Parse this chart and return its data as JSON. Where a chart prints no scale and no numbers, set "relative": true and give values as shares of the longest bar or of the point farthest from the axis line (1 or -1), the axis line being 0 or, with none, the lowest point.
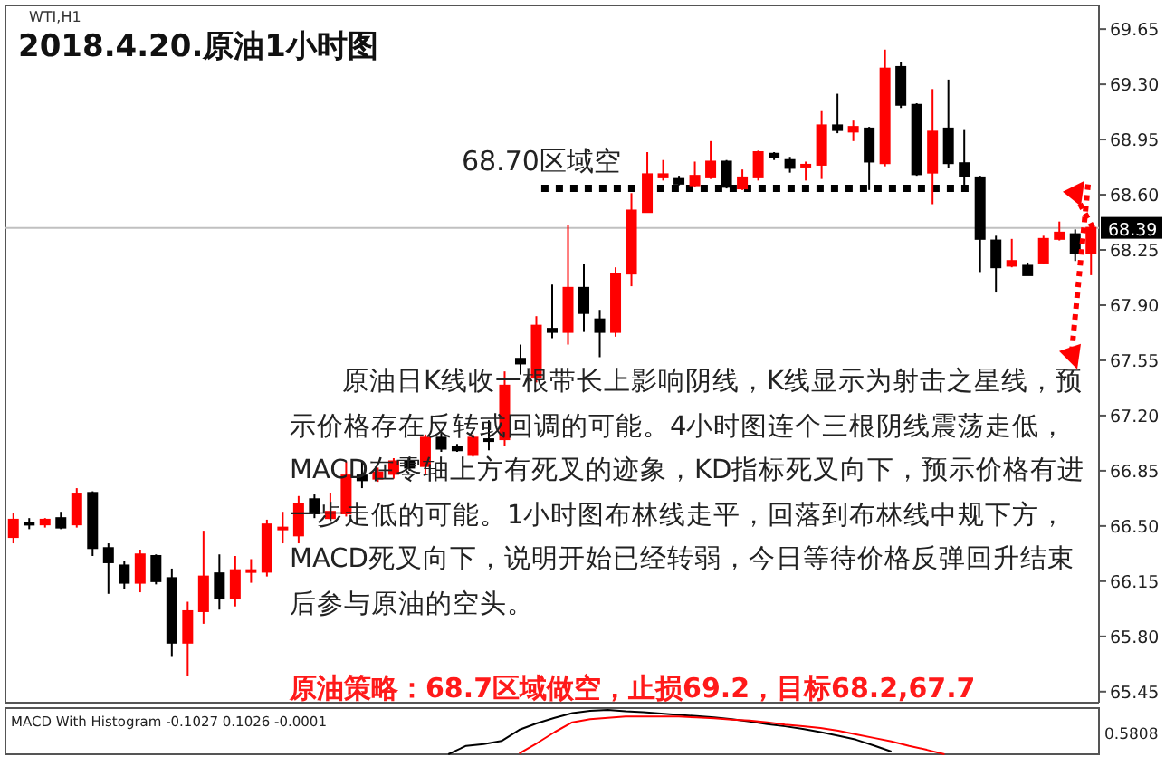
{
  "chart_data": [
    {
      "type": "candlestick",
      "title": "2018.4.20.原油1小时图",
      "subtitle": "WTI,H1",
      "categories": [
        null,
        null,
        null,
        null,
        null,
        null,
        null,
        null,
        null,
        null,
        null,
        null,
        null,
        null,
        null,
        null,
        null,
        null,
        null,
        null,
        null,
        null,
        null,
        null,
        null,
        null,
        null,
        null,
        null,
        null,
        null,
        null,
        null,
        null,
        null,
        null,
        null,
        null,
        null,
        null,
        null,
        null,
        null,
        null,
        null,
        null,
        null,
        null,
        null,
        null,
        null,
        null,
        null,
        null,
        null,
        null,
        null,
        null,
        null,
        null,
        null,
        null,
        null,
        null,
        null,
        null,
        null,
        null,
        null
      ],
      "ohlc": [
        [
          66.43,
          66.58,
          66.39,
          66.54
        ],
        [
          66.52,
          66.55,
          66.48,
          66.51
        ],
        [
          66.51,
          66.55,
          66.49,
          66.54
        ],
        [
          66.55,
          66.59,
          66.48,
          66.49
        ],
        [
          66.51,
          66.74,
          66.49,
          66.7
        ],
        [
          66.71,
          66.72,
          66.31,
          66.36
        ],
        [
          66.36,
          66.39,
          66.07,
          66.27
        ],
        [
          66.25,
          66.28,
          66.1,
          66.14
        ],
        [
          66.14,
          66.35,
          66.08,
          66.32
        ],
        [
          66.31,
          66.32,
          66.13,
          66.15
        ],
        [
          66.17,
          66.23,
          65.67,
          65.76
        ],
        [
          65.76,
          66.02,
          65.55,
          65.96
        ],
        [
          65.96,
          66.47,
          65.88,
          66.18
        ],
        [
          66.2,
          66.32,
          65.97,
          66.04
        ],
        [
          66.04,
          66.31,
          65.99,
          66.22
        ],
        [
          66.21,
          66.29,
          66.14,
          66.22
        ],
        [
          66.21,
          66.54,
          66.18,
          66.51
        ],
        [
          66.48,
          66.59,
          66.39,
          66.49
        ],
        [
          66.44,
          66.69,
          66.39,
          66.64
        ],
        [
          66.67,
          66.7,
          66.55,
          66.58
        ],
        [
          66.55,
          66.71,
          66.54,
          66.59
        ],
        [
          66.58,
          66.91,
          66.56,
          66.82
        ],
        [
          66.82,
          66.91,
          66.74,
          66.79
        ],
        [
          66.8,
          66.87,
          66.78,
          66.84
        ],
        [
          66.83,
          66.93,
          66.8,
          66.91
        ],
        [
          66.91,
          66.94,
          66.85,
          66.87
        ],
        [
          66.88,
          67.08,
          66.83,
          67.06
        ],
        [
          67.06,
          67.09,
          66.97,
          66.99
        ],
        [
          67.0,
          67.02,
          66.97,
          66.98
        ],
        [
          66.95,
          67.08,
          66.94,
          67.06
        ],
        [
          67.05,
          67.17,
          66.98,
          67.04
        ],
        [
          67.05,
          67.48,
          67.01,
          67.39
        ],
        [
          67.56,
          67.65,
          67.46,
          67.53
        ],
        [
          67.44,
          67.83,
          67.41,
          67.77
        ],
        [
          67.75,
          68.03,
          67.69,
          67.73
        ],
        [
          67.73,
          68.41,
          67.65,
          68.01
        ],
        [
          68.01,
          68.16,
          67.73,
          67.85
        ],
        [
          67.81,
          67.87,
          67.57,
          67.73
        ],
        [
          67.73,
          68.14,
          67.7,
          68.1
        ],
        [
          68.1,
          68.61,
          68.02,
          68.5
        ],
        [
          68.49,
          68.87,
          68.49,
          68.73
        ],
        [
          68.71,
          68.82,
          68.69,
          68.73
        ],
        [
          68.7,
          68.72,
          68.66,
          68.67
        ],
        [
          68.66,
          68.81,
          68.65,
          68.72
        ],
        [
          68.71,
          68.94,
          68.7,
          68.81
        ],
        [
          68.81,
          68.82,
          68.64,
          68.65
        ],
        [
          68.64,
          68.76,
          68.63,
          68.71
        ],
        [
          68.71,
          68.88,
          68.69,
          68.87
        ],
        [
          68.86,
          68.87,
          68.82,
          68.84
        ],
        [
          68.82,
          68.84,
          68.74,
          68.77
        ],
        [
          68.78,
          68.81,
          68.69,
          68.79
        ],
        [
          68.79,
          69.13,
          68.7,
          69.04
        ],
        [
          69.04,
          69.24,
          68.99,
          69.01
        ],
        [
          69.0,
          69.07,
          68.94,
          69.03
        ],
        [
          69.02,
          69.03,
          68.63,
          68.81
        ],
        [
          68.8,
          69.52,
          68.78,
          69.4
        ],
        [
          69.41,
          69.44,
          69.15,
          69.17
        ],
        [
          69.17,
          69.18,
          68.72,
          68.73
        ],
        [
          68.74,
          69.27,
          68.54,
          69.0
        ],
        [
          69.02,
          69.33,
          68.77,
          68.8
        ],
        [
          68.8,
          69.01,
          68.65,
          68.72
        ],
        [
          68.71,
          68.72,
          68.11,
          68.32
        ],
        [
          68.31,
          68.34,
          67.98,
          68.14
        ],
        [
          68.15,
          68.32,
          68.14,
          68.18
        ],
        [
          68.15,
          68.17,
          68.09,
          68.09
        ],
        [
          68.17,
          68.34,
          68.16,
          68.32
        ],
        [
          68.32,
          68.43,
          68.31,
          68.36
        ],
        [
          68.35,
          68.38,
          68.18,
          68.23
        ],
        [
          68.23,
          68.41,
          68.09,
          68.39
        ]
      ],
      "colors": [
        "#ff0000",
        "#000000",
        "#ff0000",
        "#000000",
        "#ff0000",
        "#000000",
        "#000000",
        "#000000",
        "#ff0000",
        "#000000",
        "#000000",
        "#ff0000",
        "#ff0000",
        "#000000",
        "#ff0000",
        "#ff0000",
        "#ff0000",
        "#ff0000",
        "#ff0000",
        "#000000",
        "#ff0000",
        "#ff0000",
        "#000000",
        "#ff0000",
        "#ff0000",
        "#000000",
        "#ff0000",
        "#000000",
        "#000000",
        "#ff0000",
        "#000000",
        "#ff0000",
        "#000000",
        "#ff0000",
        "#000000",
        "#ff0000",
        "#000000",
        "#000000",
        "#ff0000",
        "#ff0000",
        "#ff0000",
        "#ff0000",
        "#000000",
        "#ff0000",
        "#ff0000",
        "#000000",
        "#ff0000",
        "#ff0000",
        "#000000",
        "#000000",
        "#ff0000",
        "#ff0000",
        "#000000",
        "#ff0000",
        "#000000",
        "#ff0000",
        "#000000",
        "#000000",
        "#ff0000",
        "#000000",
        "#000000",
        "#000000",
        "#000000",
        "#ff0000",
        "#000000",
        "#ff0000",
        "#ff0000",
        "#000000",
        "#ff0000"
      ],
      "ylim": [
        65.38,
        69.8
      ],
      "yticks": [
        69.65,
        {
          "value": 69.3,
          "label": "69.30"
        },
        68.95,
        {
          "value": 68.6,
          "label": "68.60"
        },
        68.25,
        {
          "value": 67.9,
          "label": "67.90"
        },
        67.55,
        {
          "value": 67.2,
          "label": "67.20"
        },
        66.85,
        {
          "value": 66.5,
          "label": "66.50"
        },
        66.15,
        {
          "value": 65.8,
          "label": "65.80"
        },
        65.45
      ],
      "tick_labels": "y",
      "ref_lines": [
        {
          "axis": "y",
          "value": 68.39,
          "label": "68.39",
          "color": "#c0c0c0",
          "line_style": "solid"
        },
        {
          "axis": "y",
          "value": 68.64,
          "label": "68.70区域空",
          "color": "#000000",
          "line_style": "dotted"
        }
      ],
      "annotations": [
        "原油日K线收一根带长上影响阴线，K线显示为射击之星线，预示价格存在反转或回调的可能。4小时图连个三根阴线震荡走低，MACD在零轴上方有死叉的迹象，KD指标死叉向下，预示价格有进一步走低的可能。1小时图布林线走平，回落到布林线中规下方，MACD死叉向下，说明开始已经转弱，今日等待价格反弹回升结束后参与原油的空头。",
        "原油策略：68.7区域做空，止损69.2，目标68.2,67.7"
      ]
    },
    {
      "type": "line",
      "relative": true,
      "tick_labels": false,
      "categories": [
        null,
        null,
        null,
        null,
        null,
        null,
        null,
        null,
        null,
        null,
        null,
        null,
        null,
        null,
        null,
        null,
        null,
        null,
        null,
        null,
        null,
        null,
        null,
        null,
        null,
        null,
        null,
        null,
        null
      ],
      "series": [
        {
          "color": "#000000",
          "values": [
            0,
            0.19,
            0.23,
            0.3,
            0.55,
            0.7,
            0.82,
            0.93,
            0.98,
            1,
            0.97,
            0.95,
            0.92,
            0.89,
            0.86,
            0.83,
            0.79,
            0.74,
            0.68,
            0.63,
            0.57,
            0.5,
            0.42,
            0.33,
            0.2,
            0.06,
            null,
            null,
            null
          ]
        },
        {
          "color": "#ff0000",
          "values": [
            null,
            null,
            null,
            null,
            0.02,
            0.25,
            0.5,
            0.72,
            0.79,
            0.82,
            0.85,
            0.85,
            0.85,
            0.85,
            0.83,
            0.81,
            0.78,
            0.76,
            0.72,
            0.67,
            0.63,
            0.59,
            0.53,
            0.45,
            0.37,
            0.29,
            0.19,
            0.1,
            0
          ]
        }
      ],
      "annotations": [
        "MACD With Histogram -0.1027 0.1026 -0.0001",
        "0.5808"
      ]
    }
  ]
}
